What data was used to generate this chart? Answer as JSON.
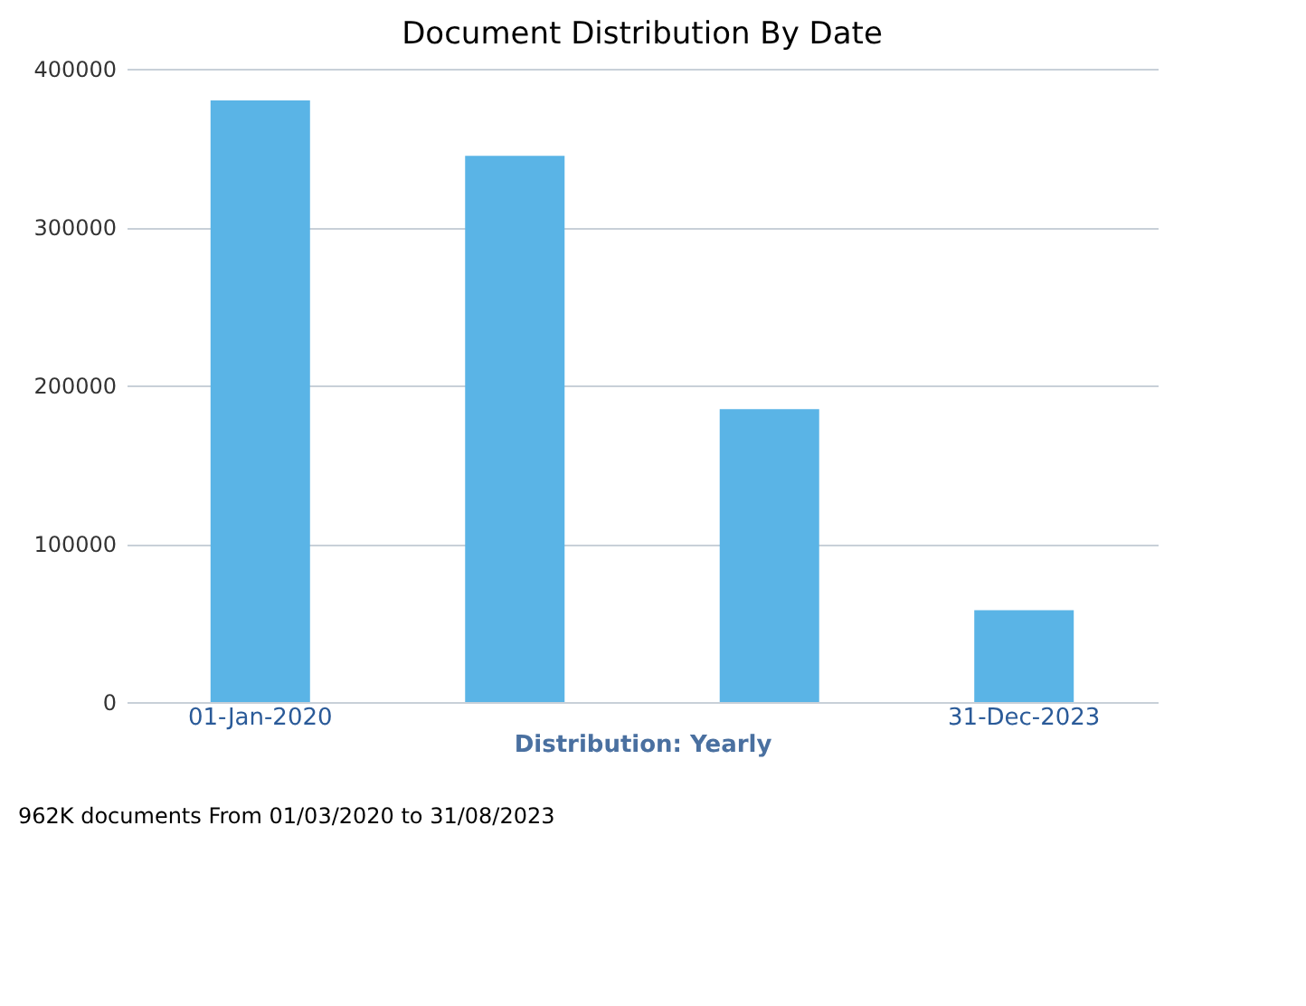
{
  "chart_data": {
    "type": "bar",
    "title": "Document Distribution By Date",
    "xlabel": "Distribution: Yearly",
    "categories": [
      "01-Jan-2020",
      null,
      null,
      "31-Dec-2023"
    ],
    "values": [
      380000,
      345000,
      185000,
      58000
    ],
    "color": "#5ab4e6",
    "ylim": [
      0,
      400000
    ],
    "yticks": [
      0,
      100000,
      200000,
      300000,
      400000
    ],
    "grid": "y",
    "annotations": [
      "962K documents From 01/03/2020 to 31/08/2023"
    ]
  }
}
